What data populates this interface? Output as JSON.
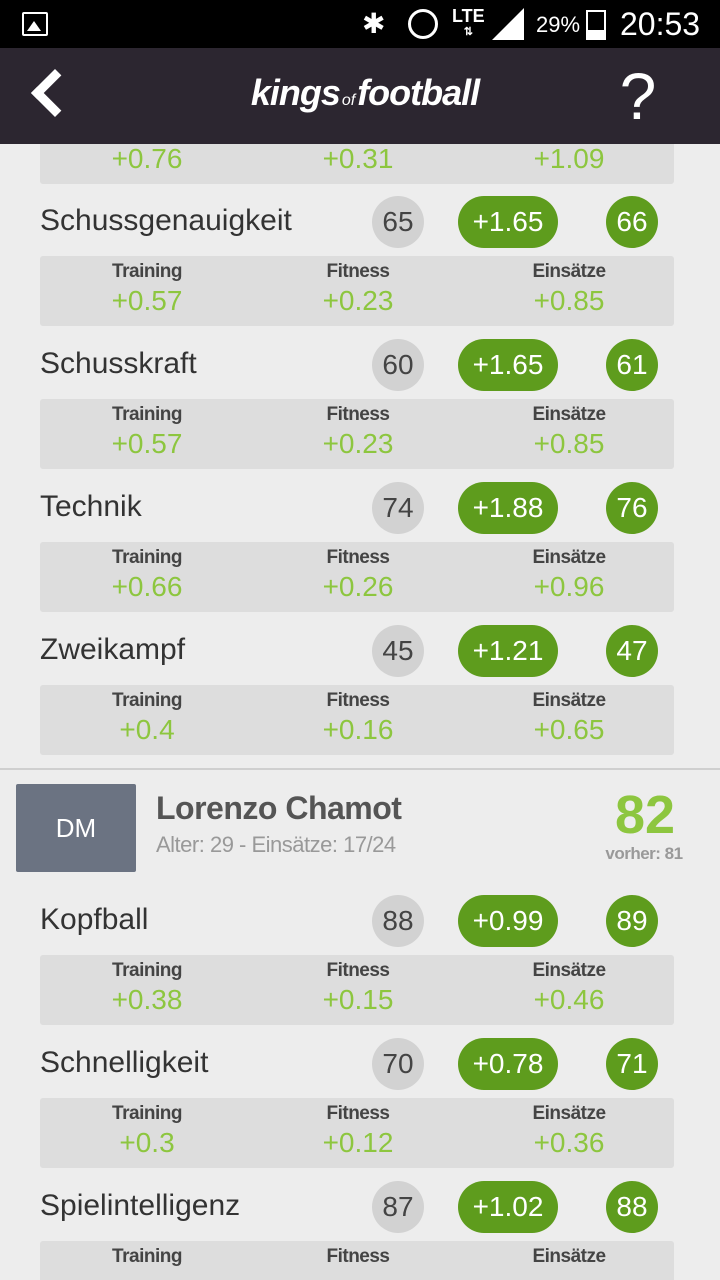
{
  "status_bar": {
    "battery": "29%",
    "battery_level": 0.29,
    "network": "LTE",
    "time": "20:53"
  },
  "appbar": {
    "logo_left": "kings",
    "logo_mid": "of",
    "logo_right": "football",
    "help": "?"
  },
  "labels": {
    "training": "Training",
    "fitness": "Fitness",
    "einsaetze": "Einsätze"
  },
  "top_partial": {
    "training": "+0.76",
    "fitness": "+0.31",
    "einsaetze": "+1.09"
  },
  "player1_stats": [
    {
      "name": "Schussgenauigkeit",
      "old": "65",
      "gain": "+1.65",
      "new": "66",
      "training": "+0.57",
      "fitness": "+0.23",
      "einsaetze": "+0.85"
    },
    {
      "name": "Schusskraft",
      "old": "60",
      "gain": "+1.65",
      "new": "61",
      "training": "+0.57",
      "fitness": "+0.23",
      "einsaetze": "+0.85"
    },
    {
      "name": "Technik",
      "old": "74",
      "gain": "+1.88",
      "new": "76",
      "training": "+0.66",
      "fitness": "+0.26",
      "einsaetze": "+0.96"
    },
    {
      "name": "Zweikampf",
      "old": "45",
      "gain": "+1.21",
      "new": "47",
      "training": "+0.4",
      "fitness": "+0.16",
      "einsaetze": "+0.65"
    }
  ],
  "player2": {
    "position": "DM",
    "name": "Lorenzo Chamot",
    "meta": "Alter: 29 - Einsätze: 17/24",
    "rating": "82",
    "previous": "vorher: 81",
    "stats": [
      {
        "name": "Kopfball",
        "old": "88",
        "gain": "+0.99",
        "new": "89",
        "training": "+0.38",
        "fitness": "+0.15",
        "einsaetze": "+0.46"
      },
      {
        "name": "Schnelligkeit",
        "old": "70",
        "gain": "+0.78",
        "new": "71",
        "training": "+0.3",
        "fitness": "+0.12",
        "einsaetze": "+0.36"
      },
      {
        "name": "Spielintelligenz",
        "old": "87",
        "gain": "+1.02",
        "new": "88"
      }
    ]
  },
  "colors": {
    "accent_green": "#5e9c1d",
    "light_green": "#8dc63f",
    "appbar": "#2c2630"
  }
}
